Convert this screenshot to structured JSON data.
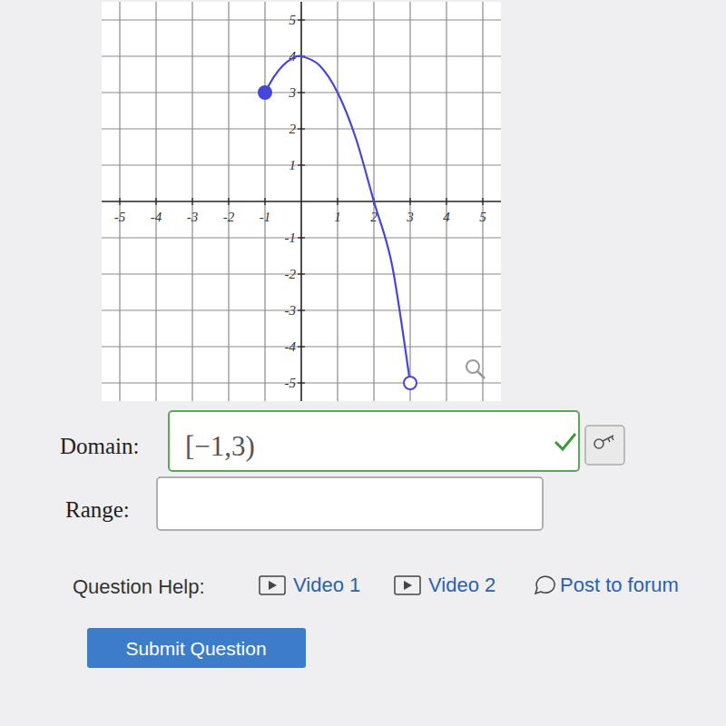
{
  "chart_data": {
    "type": "line",
    "x": [
      -1,
      -0.75,
      -0.5,
      -0.25,
      0,
      0.5,
      1,
      1.5,
      2,
      2.5,
      3
    ],
    "values": [
      3,
      3.44,
      3.75,
      3.94,
      4,
      3.75,
      3,
      1.75,
      0,
      -1.75,
      -5
    ],
    "marker": "closed-open",
    "color": "#4646d8",
    "xlim": [
      -5.5,
      5.5
    ],
    "ylim": [
      -5.5,
      5.5
    ],
    "xticks": [
      -5,
      -4,
      -3,
      -2,
      -1,
      1,
      2,
      3,
      4,
      5
    ],
    "yticks": [
      -5,
      -4,
      -3,
      -2,
      -1,
      1,
      2,
      3,
      4,
      5
    ],
    "grid": true
  },
  "form": {
    "domain_label": "Domain:",
    "domain_answer": "[−1,3)",
    "range_label": "Range:",
    "help_label": "Question Help:",
    "links": [
      "Video 1",
      "Video 2",
      "Post to forum"
    ],
    "submit": "Submit Question"
  }
}
